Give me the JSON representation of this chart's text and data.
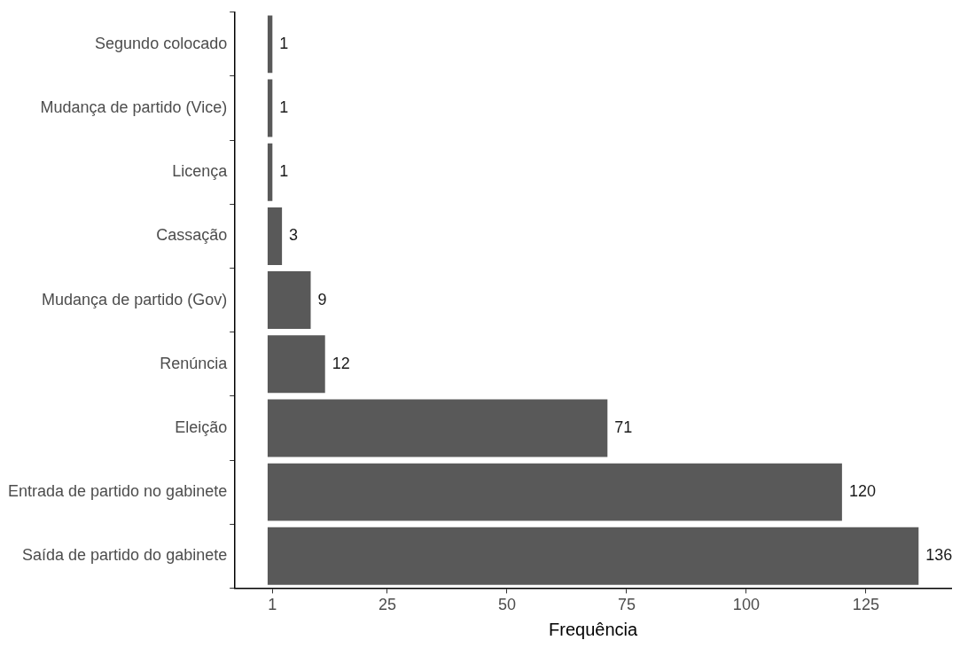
{
  "chart_data": {
    "type": "bar",
    "orientation": "horizontal",
    "xlabel": "Frequência",
    "categories": [
      "Segundo colocado",
      "Mudança de partido (Vice)",
      "Licença",
      "Cassação",
      "Mudança de partido (Gov)",
      "Renúncia",
      "Eleição",
      "Entrada de partido no gabinete",
      "Saída de partido do gabinete"
    ],
    "values": [
      1,
      1,
      1,
      3,
      9,
      12,
      71,
      120,
      136
    ],
    "color": "#595959",
    "xlim": [
      -6.8,
      142.8
    ],
    "xticks": [
      1,
      25,
      50,
      75,
      100,
      125
    ],
    "grid": false,
    "legend": false,
    "data_labels": true
  }
}
